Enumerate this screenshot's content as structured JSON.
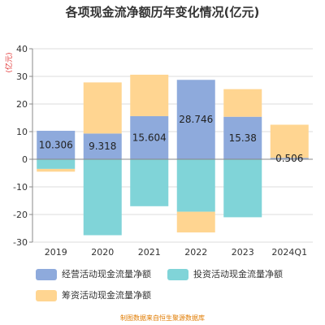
{
  "chart_data": {
    "type": "bar",
    "stacked": true,
    "title": "各项现金流净额历年变化情况(亿元)",
    "ylabel": "(亿元)",
    "ylim": [
      -30,
      40
    ],
    "yticks": [
      -30,
      -20,
      -10,
      0,
      10,
      20,
      30,
      40
    ],
    "categories": [
      "2019",
      "2020",
      "2021",
      "2022",
      "2023",
      "2024Q1"
    ],
    "series": [
      {
        "name": "经营活动现金流量净额",
        "color": "#8eaadc",
        "values": [
          10.306,
          9.318,
          15.604,
          28.746,
          15.38,
          0.506
        ]
      },
      {
        "name": "投资活动现金流量净额",
        "color": "#80d4d8",
        "values": [
          -3.5,
          -27.5,
          -17.0,
          -19.0,
          -21.0,
          0
        ]
      },
      {
        "name": "筹资活动现金流量净额",
        "color": "#ffd591",
        "values": [
          -1.0,
          18.5,
          15.0,
          -7.5,
          10.0,
          12.0
        ]
      }
    ],
    "data_labels": [
      "10.306",
      "9.318",
      "15.604",
      "28.746",
      "15.38",
      "0.506"
    ],
    "grid": true,
    "legend_position": "bottom"
  },
  "source_note": "制图数据来自恒生聚源数据库"
}
